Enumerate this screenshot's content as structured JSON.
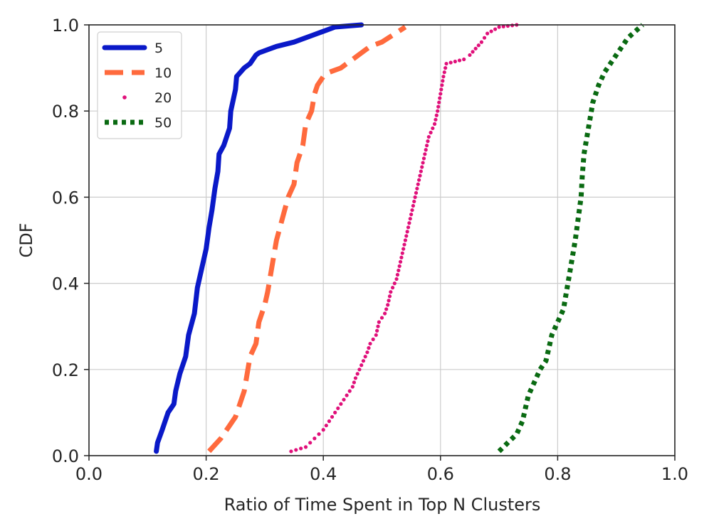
{
  "chart_data": {
    "type": "line",
    "xlabel": "Ratio of Time Spent in Top N Clusters",
    "ylabel": "CDF",
    "xlim": [
      0.0,
      1.0
    ],
    "ylim": [
      0.0,
      1.0
    ],
    "xticks": [
      "0.0",
      "0.2",
      "0.4",
      "0.6",
      "0.8",
      "1.0"
    ],
    "yticks": [
      "0.0",
      "0.2",
      "0.4",
      "0.6",
      "0.8",
      "1.0"
    ],
    "grid": true,
    "legend_position": "top-left",
    "series": [
      {
        "name": "5",
        "style": "solid",
        "color": "#0a19c8",
        "x": [
          0.115,
          0.117,
          0.125,
          0.135,
          0.145,
          0.148,
          0.155,
          0.165,
          0.17,
          0.18,
          0.185,
          0.195,
          0.2,
          0.205,
          0.21,
          0.215,
          0.22,
          0.222,
          0.23,
          0.24,
          0.242,
          0.25,
          0.252,
          0.265,
          0.275,
          0.285,
          0.29,
          0.3,
          0.32,
          0.35,
          0.38,
          0.4,
          0.42,
          0.465
        ],
        "y": [
          0.01,
          0.03,
          0.06,
          0.1,
          0.12,
          0.15,
          0.19,
          0.23,
          0.28,
          0.33,
          0.39,
          0.45,
          0.48,
          0.53,
          0.57,
          0.62,
          0.66,
          0.7,
          0.72,
          0.76,
          0.8,
          0.85,
          0.88,
          0.9,
          0.91,
          0.93,
          0.935,
          0.94,
          0.95,
          0.96,
          0.975,
          0.985,
          0.995,
          1.0
        ]
      },
      {
        "name": "10",
        "style": "dashed",
        "color": "#ff6a3d",
        "x": [
          0.205,
          0.225,
          0.25,
          0.265,
          0.27,
          0.275,
          0.285,
          0.29,
          0.3,
          0.305,
          0.31,
          0.315,
          0.32,
          0.33,
          0.34,
          0.35,
          0.355,
          0.365,
          0.37,
          0.38,
          0.385,
          0.39,
          0.4,
          0.41,
          0.43,
          0.45,
          0.46,
          0.48,
          0.5,
          0.54
        ],
        "y": [
          0.01,
          0.04,
          0.09,
          0.15,
          0.19,
          0.23,
          0.26,
          0.31,
          0.35,
          0.38,
          0.42,
          0.46,
          0.5,
          0.55,
          0.6,
          0.63,
          0.68,
          0.72,
          0.77,
          0.8,
          0.84,
          0.86,
          0.88,
          0.89,
          0.9,
          0.92,
          0.93,
          0.95,
          0.96,
          0.995
        ]
      },
      {
        "name": "20",
        "style": "dotted",
        "color": "#e0107a",
        "x": [
          0.345,
          0.37,
          0.385,
          0.4,
          0.41,
          0.42,
          0.43,
          0.44,
          0.45,
          0.455,
          0.465,
          0.475,
          0.48,
          0.49,
          0.495,
          0.505,
          0.51,
          0.515,
          0.525,
          0.53,
          0.535,
          0.54,
          0.545,
          0.55,
          0.555,
          0.56,
          0.565,
          0.57,
          0.575,
          0.58,
          0.59,
          0.595,
          0.6,
          0.605,
          0.61,
          0.64,
          0.65,
          0.67,
          0.68,
          0.7,
          0.73
        ],
        "y": [
          0.01,
          0.02,
          0.04,
          0.06,
          0.08,
          0.1,
          0.12,
          0.14,
          0.16,
          0.18,
          0.21,
          0.24,
          0.26,
          0.28,
          0.31,
          0.33,
          0.35,
          0.38,
          0.41,
          0.44,
          0.47,
          0.5,
          0.53,
          0.56,
          0.59,
          0.62,
          0.65,
          0.68,
          0.71,
          0.74,
          0.77,
          0.8,
          0.84,
          0.88,
          0.91,
          0.92,
          0.93,
          0.96,
          0.98,
          0.995,
          1.0
        ]
      },
      {
        "name": "50",
        "style": "dotted",
        "color": "#0a6a12",
        "x": [
          0.7,
          0.715,
          0.73,
          0.74,
          0.745,
          0.75,
          0.76,
          0.77,
          0.78,
          0.785,
          0.79,
          0.8,
          0.81,
          0.815,
          0.82,
          0.825,
          0.83,
          0.835,
          0.84,
          0.842,
          0.845,
          0.85,
          0.855,
          0.86,
          0.87,
          0.88,
          0.9,
          0.92,
          0.945
        ],
        "y": [
          0.01,
          0.03,
          0.05,
          0.08,
          0.11,
          0.14,
          0.17,
          0.2,
          0.22,
          0.25,
          0.28,
          0.31,
          0.34,
          0.38,
          0.42,
          0.46,
          0.5,
          0.55,
          0.6,
          0.65,
          0.7,
          0.74,
          0.78,
          0.82,
          0.86,
          0.89,
          0.93,
          0.97,
          1.0
        ]
      }
    ]
  }
}
